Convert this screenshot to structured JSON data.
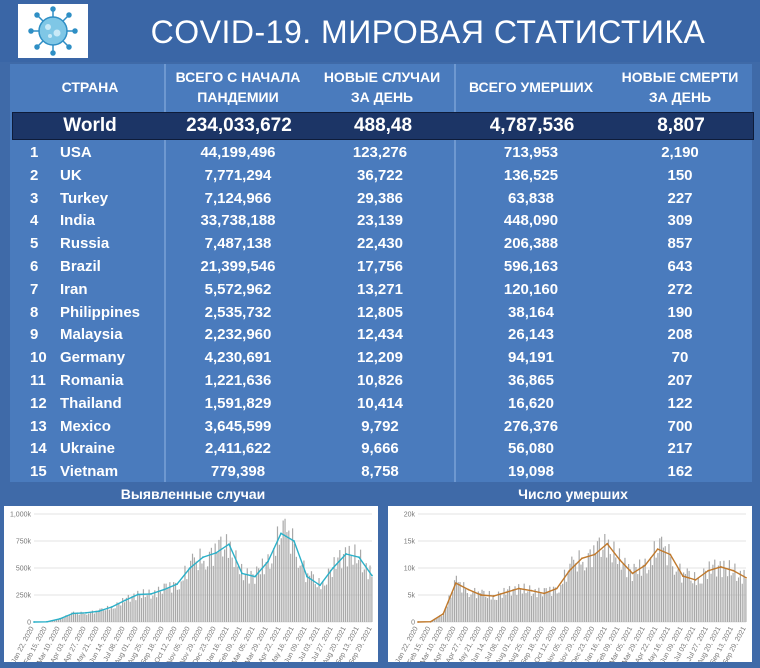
{
  "header": {
    "title": "COVID-19. МИРОВАЯ СТАТИСТИКА",
    "logo": "coronavirus-icon"
  },
  "table": {
    "columns": [
      "СТРАНА",
      "ВСЕГО С НАЧАЛА ПАНДЕМИИ",
      "НОВЫЕ СЛУЧАИ ЗА ДЕНЬ",
      "ВСЕГО УМЕРШИХ",
      "НОВЫЕ СМЕРТИ ЗА ДЕНЬ"
    ],
    "column_lines": [
      [
        "СТРАНА"
      ],
      [
        "ВСЕГО С НАЧАЛА",
        "ПАНДЕМИИ"
      ],
      [
        "НОВЫЕ СЛУЧАИ",
        "ЗА ДЕНЬ"
      ],
      [
        "ВСЕГО УМЕРШИХ"
      ],
      [
        "НОВЫЕ СМЕРТИ",
        "ЗА ДЕНЬ"
      ]
    ],
    "world": {
      "name": "World",
      "total": "234,033,672",
      "new": "488,48",
      "deaths": "4,787,536",
      "new_deaths": "8,807"
    },
    "rows": [
      {
        "rank": "1",
        "country": "USA",
        "total": "44,199,496",
        "new": "123,276",
        "deaths": "713,953",
        "new_deaths": "2,190"
      },
      {
        "rank": "2",
        "country": "UK",
        "total": "7,771,294",
        "new": "36,722",
        "deaths": "136,525",
        "new_deaths": "150"
      },
      {
        "rank": "3",
        "country": "Turkey",
        "total": "7,124,966",
        "new": "29,386",
        "deaths": "63,838",
        "new_deaths": "227"
      },
      {
        "rank": "4",
        "country": "India",
        "total": "33,738,188",
        "new": "23,139",
        "deaths": "448,090",
        "new_deaths": "309"
      },
      {
        "rank": "5",
        "country": "Russia",
        "total": "7,487,138",
        "new": "22,430",
        "deaths": "206,388",
        "new_deaths": "857"
      },
      {
        "rank": "6",
        "country": "Brazil",
        "total": "21,399,546",
        "new": "17,756",
        "deaths": "596,163",
        "new_deaths": "643"
      },
      {
        "rank": "7",
        "country": "Iran",
        "total": "5,572,962",
        "new": "13,271",
        "deaths": "120,160",
        "new_deaths": "272"
      },
      {
        "rank": "8",
        "country": "Philippines",
        "total": "2,535,732",
        "new": "12,805",
        "deaths": "38,164",
        "new_deaths": "190"
      },
      {
        "rank": "9",
        "country": "Malaysia",
        "total": "2,232,960",
        "new": "12,434",
        "deaths": "26,143",
        "new_deaths": "208"
      },
      {
        "rank": "10",
        "country": "Germany",
        "total": "4,230,691",
        "new": "12,209",
        "deaths": "94,191",
        "new_deaths": "70"
      },
      {
        "rank": "11",
        "country": "Romania",
        "total": "1,221,636",
        "new": "10,826",
        "deaths": "36,865",
        "new_deaths": "207"
      },
      {
        "rank": "12",
        "country": "Thailand",
        "total": "1,591,829",
        "new": "10,414",
        "deaths": "16,620",
        "new_deaths": "122"
      },
      {
        "rank": "13",
        "country": "Mexico",
        "total": "3,645,599",
        "new": "9,792",
        "deaths": "276,376",
        "new_deaths": "700"
      },
      {
        "rank": "14",
        "country": "Ukraine",
        "total": "2,411,622",
        "new": "9,666",
        "deaths": "56,080",
        "new_deaths": "217"
      },
      {
        "rank": "15",
        "country": "Vietnam",
        "total": "779,398",
        "new": "8,758",
        "deaths": "19,098",
        "new_deaths": "162"
      }
    ]
  },
  "chart_data": [
    {
      "type": "bar",
      "title": "Выявленные случаи",
      "xlabel": "",
      "ylabel": "",
      "ylim": [
        0,
        1000000
      ],
      "y_ticks": [
        "0",
        "250k",
        "500k",
        "750k",
        "1,000k"
      ],
      "categories": [
        "Jan 22, 2020",
        "Feb 15, 2020",
        "Mar 10, 2020",
        "Apr 03, 2020",
        "Apr 27, 2020",
        "May 21, 2020",
        "Jun 14, 2020",
        "Jul 08, 2020",
        "Aug 01, 2020",
        "Aug 25, 2020",
        "Sep 18, 2020",
        "Oct 12, 2020",
        "Nov 05, 2020",
        "Nov 29, 2020",
        "Dec 23, 2020",
        "Jan 16, 2021",
        "Feb 09, 2021",
        "Mar 05, 2021",
        "Mar 29, 2021",
        "Apr 22, 2021",
        "May 16, 2021",
        "Jun 09, 2021",
        "Jul 03, 2021",
        "Jul 27, 2021",
        "Aug 20, 2021",
        "Sep 13, 2021",
        "Sep 29, 2021"
      ],
      "series": [
        {
          "values": [
            0,
            2000,
            30000,
            80000,
            85000,
            100000,
            140000,
            200000,
            255000,
            260000,
            300000,
            350000,
            500000,
            600000,
            640000,
            720000,
            450000,
            420000,
            560000,
            820000,
            750000,
            420000,
            340000,
            500000,
            630000,
            600000,
            430000
          ]
        }
      ],
      "grid": true
    },
    {
      "type": "bar",
      "title": "Число умерших",
      "xlabel": "",
      "ylabel": "",
      "ylim": [
        0,
        20000
      ],
      "y_ticks": [
        "0",
        "5k",
        "10k",
        "15k",
        "20k"
      ],
      "categories": [
        "Jan 22, 2020",
        "Feb 15, 2020",
        "Mar 10, 2020",
        "Apr 03, 2020",
        "Apr 27, 2020",
        "May 21, 2020",
        "Jun 14, 2020",
        "Jul 08, 2020",
        "Aug 01, 2020",
        "Aug 25, 2020",
        "Sep 18, 2020",
        "Oct 12, 2020",
        "Nov 05, 2020",
        "Nov 29, 2020",
        "Dec 23, 2020",
        "Jan 16, 2021",
        "Feb 09, 2021",
        "Mar 05, 2021",
        "Mar 29, 2021",
        "Apr 22, 2021",
        "May 16, 2021",
        "Jun 09, 2021",
        "Jul 03, 2021",
        "Jul 27, 2021",
        "Aug 20, 2021",
        "Sep 13, 2021",
        "Sep 29, 2021"
      ],
      "series": [
        {
          "values": [
            0,
            50,
            1500,
            7200,
            6000,
            5000,
            4800,
            5500,
            6200,
            5800,
            5300,
            6200,
            9500,
            11800,
            12500,
            14500,
            11500,
            9000,
            10500,
            13500,
            12500,
            8500,
            7800,
            9500,
            10200,
            9500,
            8200
          ]
        }
      ],
      "grid": true
    }
  ],
  "colors": {
    "background": "#3f6aa8",
    "table": "#4a7bbd",
    "world_row": "#1c3566",
    "cases_line": "#2bb0c8",
    "deaths_line": "#c0792c",
    "bar": "#a9a9a9"
  }
}
